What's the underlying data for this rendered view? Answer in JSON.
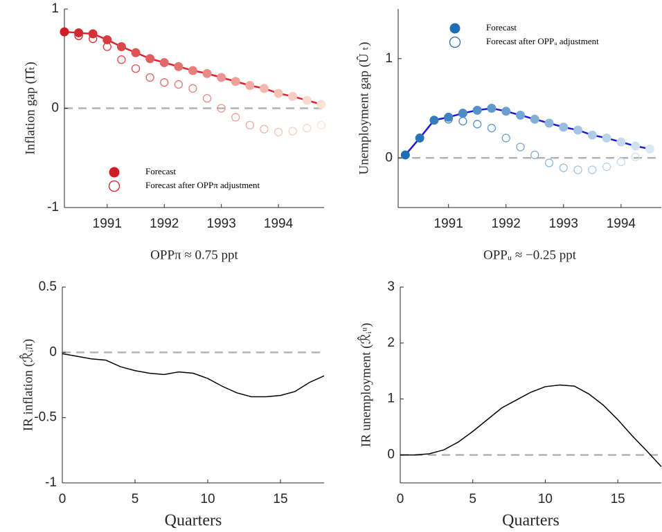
{
  "chart_data": [
    {
      "type": "scatter",
      "ylabel": "Inflation gap (Π̂ₜ)",
      "xlabel": "OPPπ ≈ 0.75 ppt",
      "xlabel_color": "#d62728",
      "x": [
        1990.25,
        1990.5,
        1990.75,
        1991,
        1991.25,
        1991.5,
        1991.75,
        1992,
        1992.25,
        1992.5,
        1992.75,
        1993,
        1993.25,
        1993.5,
        1993.75,
        1994,
        1994.25,
        1994.5,
        1994.75
      ],
      "xlim": [
        1990.25,
        1994.8
      ],
      "xticks": [
        1991,
        1992,
        1993,
        1994
      ],
      "ylim": [
        -1,
        1
      ],
      "yticks": [
        -1,
        0,
        1
      ],
      "reference_line": 0,
      "legend": "lower center",
      "line_color": "#e0202a",
      "series": [
        {
          "name": "Forecast",
          "marker": "filled",
          "line": true,
          "color": "#d01c24",
          "fade_color": "#fde3d6",
          "values": [
            0.77,
            0.76,
            0.75,
            0.69,
            0.62,
            0.56,
            0.5,
            0.46,
            0.42,
            0.38,
            0.35,
            0.31,
            0.27,
            0.23,
            0.2,
            0.15,
            0.12,
            0.08,
            0.04
          ]
        },
        {
          "name": "Forecast after OPPπ adjustment",
          "marker": "open",
          "line": false,
          "color": "#d01c24",
          "fade_color": "#fde3d6",
          "values": [
            0.77,
            0.73,
            0.7,
            0.62,
            0.49,
            0.4,
            0.31,
            0.26,
            0.24,
            0.2,
            0.1,
            0.0,
            -0.09,
            -0.17,
            -0.21,
            -0.24,
            -0.23,
            -0.2,
            -0.17
          ]
        }
      ]
    },
    {
      "type": "scatter",
      "ylabel": "Unemployment gap (Û ₜ)",
      "xlabel": "OPPᵤ ≈ −0.25 ppt",
      "xlabel_color": "#2b2bd0",
      "x": [
        1990.25,
        1990.5,
        1990.75,
        1991,
        1991.25,
        1991.5,
        1991.75,
        1992,
        1992.25,
        1992.5,
        1992.75,
        1993,
        1993.25,
        1993.5,
        1993.75,
        1994,
        1994.25,
        1994.5
      ],
      "xlim": [
        1990.125,
        1994.7
      ],
      "xticks": [
        1991,
        1992,
        1993,
        1994
      ],
      "ylim": [
        -0.5,
        1.5
      ],
      "yticks": [
        0,
        1
      ],
      "reference_line": 0,
      "legend": "upper center",
      "line_color": "#1a1ad6",
      "series": [
        {
          "name": "Forecast",
          "marker": "filled",
          "line": true,
          "color": "#1f6db5",
          "fade_color": "#dbe9f6",
          "values": [
            0.03,
            0.2,
            0.38,
            0.41,
            0.45,
            0.48,
            0.5,
            0.47,
            0.43,
            0.39,
            0.35,
            0.31,
            0.28,
            0.23,
            0.2,
            0.16,
            0.12,
            0.09
          ]
        },
        {
          "name": "Forecast after OPPᵤ adjustment",
          "marker": "open",
          "line": false,
          "color": "#1f6db5",
          "fade_color": "#dbe9f6",
          "values": [
            0.03,
            0.2,
            0.38,
            0.39,
            0.37,
            0.34,
            0.3,
            0.2,
            0.11,
            0.03,
            -0.05,
            -0.1,
            -0.12,
            -0.12,
            -0.09,
            -0.04,
            0.01,
            null
          ]
        }
      ]
    },
    {
      "type": "line",
      "ylabel": "IR inflation (ℛ̂ᵢπ)",
      "xlabel": "Quarters",
      "x": [
        0,
        1,
        2,
        3,
        4,
        5,
        6,
        7,
        8,
        9,
        10,
        11,
        12,
        13,
        14,
        15,
        16,
        17,
        18
      ],
      "xlim": [
        0,
        18
      ],
      "xticks": [
        0,
        5,
        10,
        15
      ],
      "ylim": [
        -1,
        0.5
      ],
      "yticks": [
        -1,
        -0.5,
        0,
        0.5
      ],
      "reference_line": 0,
      "color": "#000000",
      "values": [
        -0.01,
        -0.03,
        -0.05,
        -0.06,
        -0.11,
        -0.14,
        -0.16,
        -0.17,
        -0.15,
        -0.16,
        -0.2,
        -0.26,
        -0.31,
        -0.34,
        -0.34,
        -0.33,
        -0.3,
        -0.23,
        -0.18
      ]
    },
    {
      "type": "line",
      "ylabel": "IR unemployment (ℛ̂ᵢᵘ)",
      "xlabel": "Quarters",
      "x": [
        0,
        1,
        2,
        3,
        4,
        5,
        6,
        7,
        8,
        9,
        10,
        11,
        12,
        13,
        14,
        15,
        16,
        17,
        18
      ],
      "xlim": [
        0,
        18
      ],
      "xticks": [
        0,
        5,
        10,
        15
      ],
      "ylim": [
        -0.5,
        3
      ],
      "yticks": [
        0,
        1,
        2,
        3
      ],
      "reference_line": 0,
      "color": "#000000",
      "values": [
        0,
        0,
        0.02,
        0.09,
        0.23,
        0.42,
        0.63,
        0.84,
        0.98,
        1.12,
        1.22,
        1.25,
        1.23,
        1.09,
        0.89,
        0.63,
        0.34,
        0.07,
        -0.21
      ]
    }
  ]
}
